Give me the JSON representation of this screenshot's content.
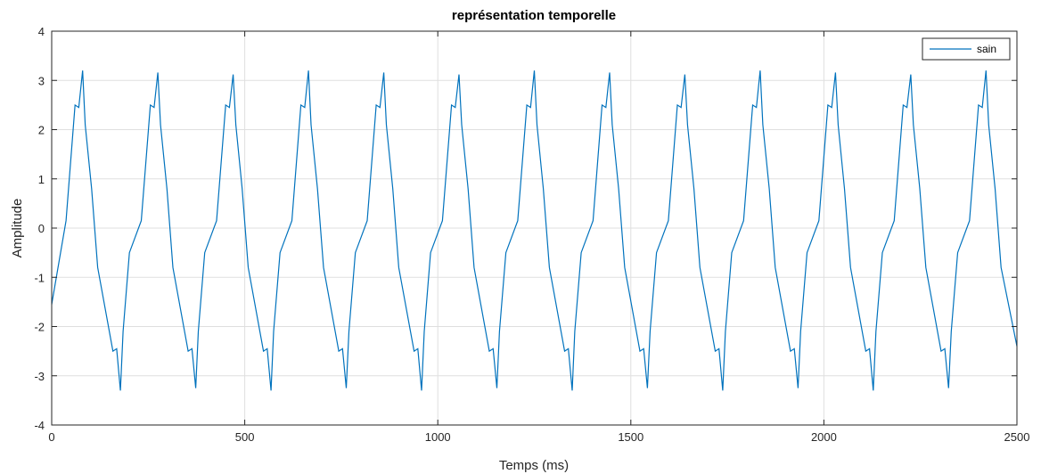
{
  "chart_data": {
    "type": "line",
    "title": "représentation temporelle",
    "xlabel": "Temps (ms)",
    "ylabel": "Amplitude",
    "xlim": [
      0,
      2500
    ],
    "ylim": [
      -4,
      4
    ],
    "xticks": [
      0,
      500,
      1000,
      1500,
      2000,
      2500
    ],
    "yticks": [
      -4,
      -3,
      -2,
      -1,
      0,
      1,
      2,
      3,
      4
    ],
    "grid": true,
    "legend_position": "top-right",
    "series": [
      {
        "name": "sain",
        "color": "#0072BD",
        "period_ms": 195,
        "peak_amplitude": 3.2,
        "trough_amplitude": -3.3,
        "shoulder_amplitude": 2.5,
        "start_value": -1.55,
        "end_value": -2.4,
        "peak_times_ms": [
          80,
          275,
          470,
          665,
          860,
          1055,
          1250,
          1445,
          1640,
          1835,
          2030,
          2225,
          2420
        ],
        "trough_times_ms": [
          178,
          373,
          568,
          763,
          958,
          1153,
          1348,
          1543,
          1738,
          1933,
          2128,
          2323
        ]
      }
    ]
  }
}
